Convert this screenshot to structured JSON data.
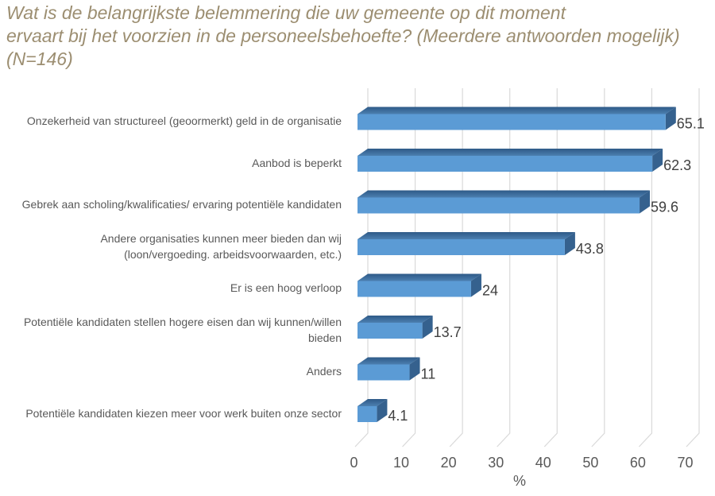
{
  "chart_data": {
    "type": "bar",
    "orientation": "horizontal",
    "style": "3d",
    "title": "Wat is de belangrijkste belemmering die uw gemeente op dit moment ervaart bij het voorzien in de personeelsbehoefte? (Meerdere antwoorden mogelijk) (N=146)",
    "title_lines": [
      "Wat is de belangrijkste belemmering die uw gemeente op dit moment",
      "ervaart bij het voorzien in de personeelsbehoefte? (Meerdere antwoorden mogelijk)",
      "(N=146)"
    ],
    "categories": [
      "Onzekerheid van structureel (geoormerkt) geld in de organisatie",
      "Aanbod is beperkt",
      "Gebrek aan scholing/kwalificaties/ ervaring potentiële kandidaten",
      "Andere organisaties kunnen meer bieden dan wij\n(loon/vergoeding. arbeidsvoorwaarden, etc.)",
      "Er is een hoog verloop",
      "Potentiële kandidaten stellen hogere eisen dan wij kunnen/willen\nbieden",
      "Anders",
      "Potentiële kandidaten kiezen meer voor werk buiten onze sector"
    ],
    "values": [
      65.1,
      62.3,
      59.6,
      43.8,
      24,
      13.7,
      11,
      4.1
    ],
    "value_labels": [
      "65.1",
      "62.3",
      "59.6",
      "43.8",
      "24",
      "13.7",
      "11",
      "4.1"
    ],
    "xlabel": "%",
    "xlim": [
      0,
      75
    ],
    "x_ticks": [
      0,
      10,
      20,
      30,
      40,
      50,
      60,
      70
    ],
    "grid": true,
    "legend": false,
    "colors": {
      "bar_front": "#5B9BD5",
      "bar_top_back": "#2E5A87",
      "bar_top_front": "#4C7FB0",
      "bar_side": "#35618E",
      "gridline": "#D9D9D9",
      "title_text": "#9C8E71",
      "category_text": "#595959",
      "tick_text": "#595959",
      "value_text": "#404040"
    }
  }
}
